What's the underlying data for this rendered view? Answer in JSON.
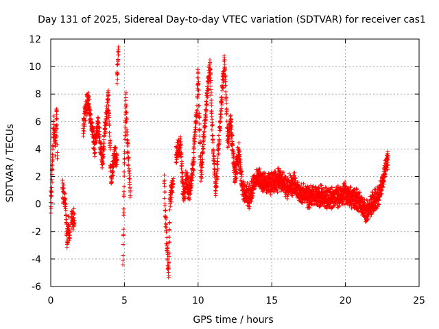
{
  "chart_data": {
    "type": "scatter",
    "title": "Day 131 of 2025, Sidereal Day-to-day VTEC variation (SDTVAR) for receiver cas1",
    "xlabel": "GPS time / hours",
    "ylabel": "SDTVAR / TECUs",
    "xlim": [
      0,
      25
    ],
    "ylim": [
      -6,
      12
    ],
    "x_ticks": [
      0,
      5,
      10,
      15,
      20,
      25
    ],
    "y_ticks": [
      -6,
      -4,
      -2,
      0,
      2,
      4,
      6,
      8,
      10,
      12
    ],
    "grid": true,
    "marker": "+",
    "series": [
      {
        "name": "SDTVAR",
        "color": "#ff0000",
        "segments": [
          {
            "t0": 0.0,
            "t1": 0.45,
            "points": [
              [
                0.0,
                -0.2
              ],
              [
                0.1,
                2.5
              ],
              [
                0.2,
                5.8
              ],
              [
                0.3,
                4.2
              ],
              [
                0.4,
                6.8
              ],
              [
                0.45,
                3.5
              ]
            ]
          },
          {
            "t0": 0.8,
            "t1": 1.3,
            "points": [
              [
                0.8,
                1.2
              ],
              [
                1.0,
                -0.2
              ],
              [
                1.1,
                -2.7
              ],
              [
                1.2,
                -1.5
              ],
              [
                1.3,
                -2.5
              ]
            ]
          },
          {
            "t0": 1.4,
            "t1": 1.6,
            "points": [
              [
                1.4,
                -1.0
              ],
              [
                1.6,
                -1.2
              ]
            ]
          },
          {
            "t0": 2.2,
            "t1": 4.5,
            "points": [
              [
                2.2,
                5.5
              ],
              [
                2.5,
                7.8
              ],
              [
                2.8,
                5.5
              ],
              [
                3.0,
                4.0
              ],
              [
                3.2,
                6.0
              ],
              [
                3.5,
                3.0
              ],
              [
                3.7,
                5.5
              ],
              [
                3.9,
                8.0
              ],
              [
                4.1,
                1.5
              ],
              [
                4.3,
                3.5
              ],
              [
                4.5,
                3.2
              ]
            ]
          },
          {
            "t0": 4.5,
            "t1": 4.6,
            "points": [
              [
                4.5,
                9.4
              ],
              [
                4.6,
                11.1
              ]
            ]
          },
          {
            "t0": 4.9,
            "t1": 5.4,
            "points": [
              [
                4.9,
                -4.1
              ],
              [
                5.0,
                3.0
              ],
              [
                5.1,
                8.0
              ],
              [
                5.2,
                4.5
              ],
              [
                5.4,
                1.0
              ]
            ]
          },
          {
            "t0": 7.7,
            "t1": 8.3,
            "points": [
              [
                7.7,
                1.5
              ],
              [
                7.8,
                -1.0
              ],
              [
                7.9,
                -3.5
              ],
              [
                8.0,
                -5.2
              ],
              [
                8.1,
                0.5
              ],
              [
                8.3,
                1.5
              ]
            ]
          },
          {
            "t0": 8.5,
            "t1": 9.7,
            "points": [
              [
                8.5,
                3.5
              ],
              [
                8.8,
                4.5
              ],
              [
                9.0,
                0.5
              ],
              [
                9.2,
                1.8
              ],
              [
                9.4,
                0.8
              ],
              [
                9.7,
                3.0
              ]
            ]
          },
          {
            "t0": 9.7,
            "t1": 12.8,
            "points": [
              [
                9.7,
                4.0
              ],
              [
                9.9,
                6.5
              ],
              [
                10.0,
                9.5
              ],
              [
                10.2,
                2.0
              ],
              [
                10.5,
                6.5
              ],
              [
                10.8,
                10.3
              ],
              [
                11.0,
                4.5
              ],
              [
                11.2,
                1.0
              ],
              [
                11.5,
                6.0
              ],
              [
                11.8,
                10.5
              ],
              [
                12.0,
                4.5
              ],
              [
                12.2,
                6.0
              ],
              [
                12.5,
                2.0
              ],
              [
                12.8,
                4.0
              ]
            ]
          },
          {
            "t0": 12.8,
            "t1": 22.9,
            "points": [
              [
                12.8,
                3.5
              ],
              [
                13.0,
                1.0
              ],
              [
                13.5,
                0.5
              ],
              [
                14.0,
                2.0
              ],
              [
                14.5,
                1.5
              ],
              [
                15.0,
                1.5
              ],
              [
                15.5,
                1.8
              ],
              [
                16.0,
                1.2
              ],
              [
                16.5,
                1.5
              ],
              [
                17.0,
                0.8
              ],
              [
                17.5,
                0.5
              ],
              [
                18.0,
                0.6
              ],
              [
                18.5,
                0.5
              ],
              [
                19.0,
                0.4
              ],
              [
                19.5,
                0.5
              ],
              [
                20.0,
                0.8
              ],
              [
                20.5,
                0.3
              ],
              [
                21.0,
                0.2
              ],
              [
                21.4,
                -0.6
              ],
              [
                21.8,
                0.0
              ],
              [
                22.2,
                0.5
              ],
              [
                22.5,
                1.5
              ],
              [
                22.9,
                3.5
              ]
            ]
          }
        ]
      }
    ]
  }
}
